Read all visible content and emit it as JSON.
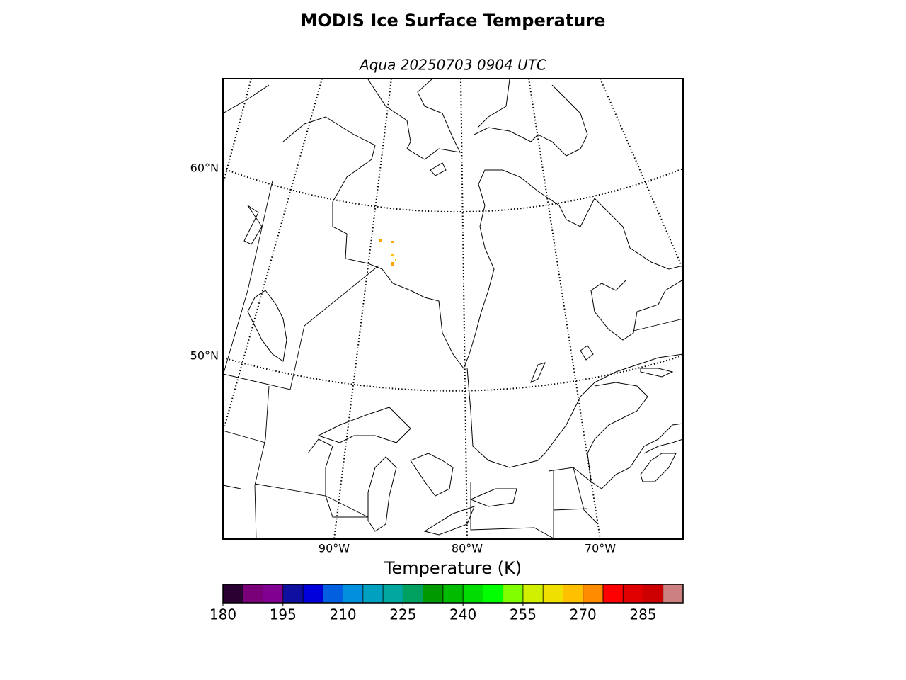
{
  "title": "MODIS Ice Surface Temperature",
  "subtitle": "Aqua 20250703 0904 UTC",
  "map": {
    "lat_labels": [
      "60°N",
      "50°N"
    ],
    "lon_labels": [
      "90°W",
      "80°W",
      "70°W"
    ]
  },
  "colorbar": {
    "label": "Temperature (K)",
    "lim": [
      180,
      295
    ],
    "ticks": [
      180,
      195,
      210,
      225,
      240,
      255,
      270,
      285
    ],
    "colors": [
      "#2a0033",
      "#7a007a",
      "#820091",
      "#1010a0",
      "#0000dd",
      "#0060e0",
      "#0090dd",
      "#00a0c0",
      "#00a8a0",
      "#00a060",
      "#009900",
      "#00bb00",
      "#00dd00",
      "#00ff00",
      "#80ff00",
      "#d0f000",
      "#f0e000",
      "#ffc000",
      "#ff8c00",
      "#ff0000",
      "#e00000",
      "#cc0000",
      "#cc8080"
    ]
  }
}
